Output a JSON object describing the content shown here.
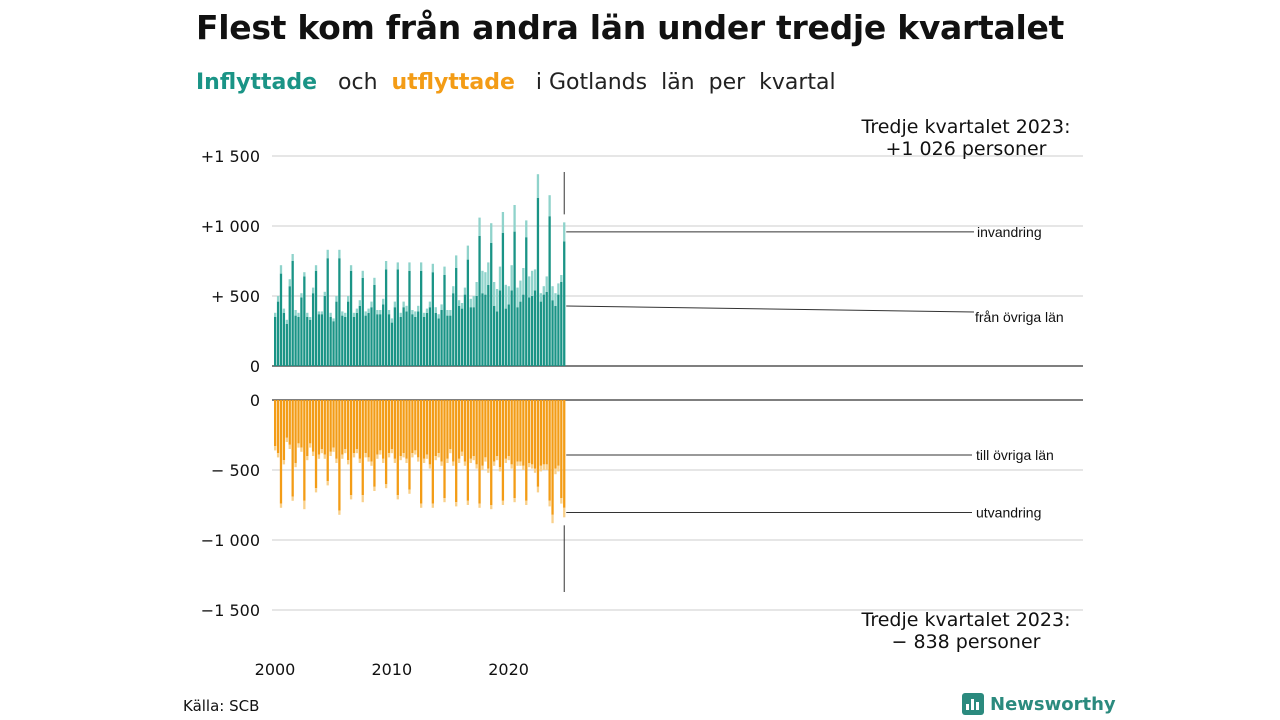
{
  "title": "Flest kom från andra län under tredje kvartalet",
  "subtitle": {
    "in_label": "Inflyttade",
    "and_label": "och",
    "out_label": "utflyttade",
    "rest": "i Gotlands  län  per  kvartal"
  },
  "source": "Källa: SCB",
  "brand": {
    "name": "Newsworthy",
    "icon": "bar-chart-icon"
  },
  "colors": {
    "in_dark": "#1a9486",
    "in_light": "#8fd3cb",
    "out_dark": "#f39c16",
    "out_light": "#f9d08a",
    "grid": "#dddddd",
    "axis": "#333333"
  },
  "chart_data": {
    "type": "bar",
    "stacked": true,
    "x_tick_labels": [
      "2000",
      "2010",
      "2020"
    ],
    "x_range": [
      "2000 Q1",
      "2023 Q3"
    ],
    "top_panel": {
      "ylim": [
        0,
        1600
      ],
      "tick_values": [
        0,
        500,
        1000,
        1500
      ],
      "tick_labels": [
        "0",
        "+  500",
        "+1 000",
        "+1 500"
      ],
      "series": [
        {
          "name": "från övriga län",
          "values": [
            350,
            460,
            660,
            380,
            300,
            570,
            750,
            360,
            350,
            490,
            640,
            350,
            330,
            520,
            680,
            370,
            370,
            500,
            770,
            350,
            320,
            460,
            770,
            360,
            350,
            460,
            680,
            350,
            380,
            430,
            630,
            360,
            380,
            420,
            580,
            370,
            370,
            440,
            690,
            370,
            310,
            420,
            690,
            350,
            420,
            390,
            680,
            370,
            350,
            390,
            680,
            350,
            380,
            420,
            670,
            380,
            340,
            400,
            650,
            360,
            360,
            520,
            700,
            430,
            410,
            510,
            760,
            420,
            420,
            500,
            930,
            520,
            510,
            580,
            880,
            430,
            390,
            540,
            950,
            410,
            440,
            540,
            960,
            420,
            460,
            510,
            920,
            490,
            500,
            540,
            1200,
            460,
            510,
            530,
            1070,
            470,
            430,
            510,
            600,
            890
          ]
        },
        {
          "name": "invandring",
          "values": [
            30,
            40,
            60,
            30,
            30,
            50,
            50,
            40,
            30,
            30,
            30,
            30,
            20,
            40,
            40,
            20,
            20,
            30,
            60,
            30,
            20,
            40,
            60,
            30,
            30,
            40,
            40,
            30,
            30,
            40,
            50,
            30,
            30,
            40,
            50,
            30,
            30,
            40,
            60,
            30,
            30,
            40,
            50,
            30,
            40,
            40,
            60,
            30,
            40,
            40,
            60,
            30,
            30,
            40,
            60,
            40,
            30,
            40,
            60,
            40,
            40,
            50,
            90,
            40,
            40,
            50,
            100,
            60,
            80,
            100,
            130,
            160,
            160,
            160,
            140,
            170,
            160,
            170,
            150,
            170,
            130,
            180,
            190,
            140,
            150,
            190,
            120,
            150,
            180,
            150,
            170,
            60,
            60,
            110,
            150,
            100,
            90,
            80,
            50,
            136
          ]
        }
      ],
      "annotation": {
        "line1": "Tredje kvartalet 2023:",
        "line2": "+1 026 personer"
      },
      "series_labels": {
        "top": "invandring",
        "bottom": "från övriga län"
      }
    },
    "bottom_panel": {
      "ylim": [
        -1600,
        0
      ],
      "tick_values": [
        0,
        -500,
        -1000,
        -1500
      ],
      "tick_labels": [
        "0",
        "−  500",
        "−1 000",
        "−1 500"
      ],
      "series": [
        {
          "name": "till övriga län",
          "values": [
            -330,
            -380,
            -740,
            -430,
            -270,
            -320,
            -690,
            -450,
            -310,
            -340,
            -720,
            -400,
            -310,
            -370,
            -630,
            -390,
            -350,
            -390,
            -580,
            -370,
            -340,
            -420,
            -790,
            -390,
            -350,
            -430,
            -680,
            -380,
            -350,
            -420,
            -680,
            -380,
            -410,
            -440,
            -620,
            -390,
            -360,
            -420,
            -600,
            -380,
            -350,
            -420,
            -680,
            -400,
            -380,
            -420,
            -640,
            -380,
            -360,
            -410,
            -740,
            -420,
            -390,
            -460,
            -740,
            -400,
            -380,
            -440,
            -700,
            -420,
            -350,
            -440,
            -730,
            -420,
            -370,
            -440,
            -720,
            -420,
            -400,
            -460,
            -740,
            -470,
            -410,
            -490,
            -750,
            -440,
            -400,
            -480,
            -720,
            -420,
            -400,
            -460,
            -700,
            -440,
            -440,
            -470,
            -720,
            -450,
            -460,
            -490,
            -620,
            -470,
            -460,
            -460,
            -720,
            -820,
            -490,
            -470,
            -700,
            -770
          ]
        },
        {
          "name": "utvandring",
          "values": [
            -30,
            -30,
            -30,
            -30,
            -30,
            -30,
            -30,
            -30,
            -30,
            -30,
            -60,
            -30,
            -30,
            -30,
            -30,
            -30,
            -30,
            -30,
            -30,
            -30,
            -30,
            -30,
            -30,
            -30,
            -30,
            -30,
            -30,
            -30,
            -30,
            -30,
            -50,
            -30,
            -30,
            -30,
            -30,
            -30,
            -30,
            -30,
            -30,
            -30,
            -30,
            -30,
            -30,
            -30,
            -30,
            -30,
            -30,
            -30,
            -30,
            -30,
            -30,
            -30,
            -30,
            -30,
            -30,
            -30,
            -30,
            -30,
            -30,
            -30,
            -30,
            -30,
            -30,
            -30,
            -30,
            -30,
            -30,
            -30,
            -30,
            -30,
            -30,
            -30,
            -30,
            -30,
            -30,
            -30,
            -30,
            -30,
            -30,
            -30,
            -30,
            -30,
            -30,
            -30,
            -30,
            -30,
            -30,
            -30,
            -30,
            -30,
            -40,
            -40,
            -40,
            -40,
            -40,
            -60,
            -40,
            -40,
            -40,
            -68
          ]
        }
      ],
      "annotation": {
        "line1": "Tredje kvartalet 2023:",
        "line2": "−  838 personer"
      },
      "series_labels": {
        "top": "till övriga län",
        "bottom": "utvandring"
      }
    }
  }
}
